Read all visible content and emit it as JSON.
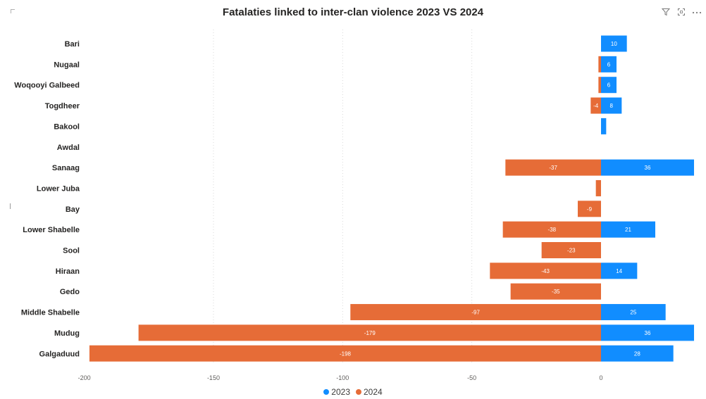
{
  "colors": {
    "series_2023": "#118DFF",
    "series_2024": "#E66C37",
    "grid": "#d9d9d9",
    "label": "#252423",
    "axis_text": "#605e5c"
  },
  "icons": [
    "filter-icon",
    "focus-mode-icon",
    "more-options-icon"
  ],
  "chart_data": {
    "type": "bar",
    "orientation": "horizontal",
    "title": "Fatalaties linked to inter-clan violence 2023 VS 2024",
    "xlabel": "",
    "ylabel": "",
    "categories": [
      "Bari",
      "Nugaal",
      "Woqooyi Galbeed",
      "Togdheer",
      "Bakool",
      "Awdal",
      "Sanaag",
      "Lower Juba",
      "Bay",
      "Lower Shabelle",
      "Sool",
      "Hiraan",
      "Gedo",
      "Middle Shabelle",
      "Mudug",
      "Galgaduud"
    ],
    "series": [
      {
        "name": "2023",
        "values": [
          10,
          6,
          6,
          8,
          2,
          null,
          36,
          null,
          null,
          21,
          null,
          14,
          null,
          25,
          36,
          28
        ],
        "labels": [
          "10",
          "6",
          "6",
          "8",
          "",
          "",
          "36",
          "",
          "",
          "21",
          "",
          "14",
          "",
          "25",
          "36",
          "28"
        ]
      },
      {
        "name": "2024",
        "values": [
          null,
          -1,
          -1,
          -4,
          null,
          null,
          -37,
          -2,
          -9,
          -38,
          -23,
          -43,
          -35,
          -97,
          -179,
          -198
        ],
        "labels": [
          "",
          "",
          "",
          "-4",
          "",
          "",
          "-37",
          "",
          "-9",
          "-38",
          "-23",
          "-43",
          "-35",
          "-97",
          "-179",
          "-198"
        ]
      }
    ],
    "xlim": [
      -200,
      36
    ],
    "xticks": [
      "-200",
      "-150",
      "-100",
      "-50",
      "0"
    ],
    "grid": true,
    "legend": "bottom-center"
  }
}
